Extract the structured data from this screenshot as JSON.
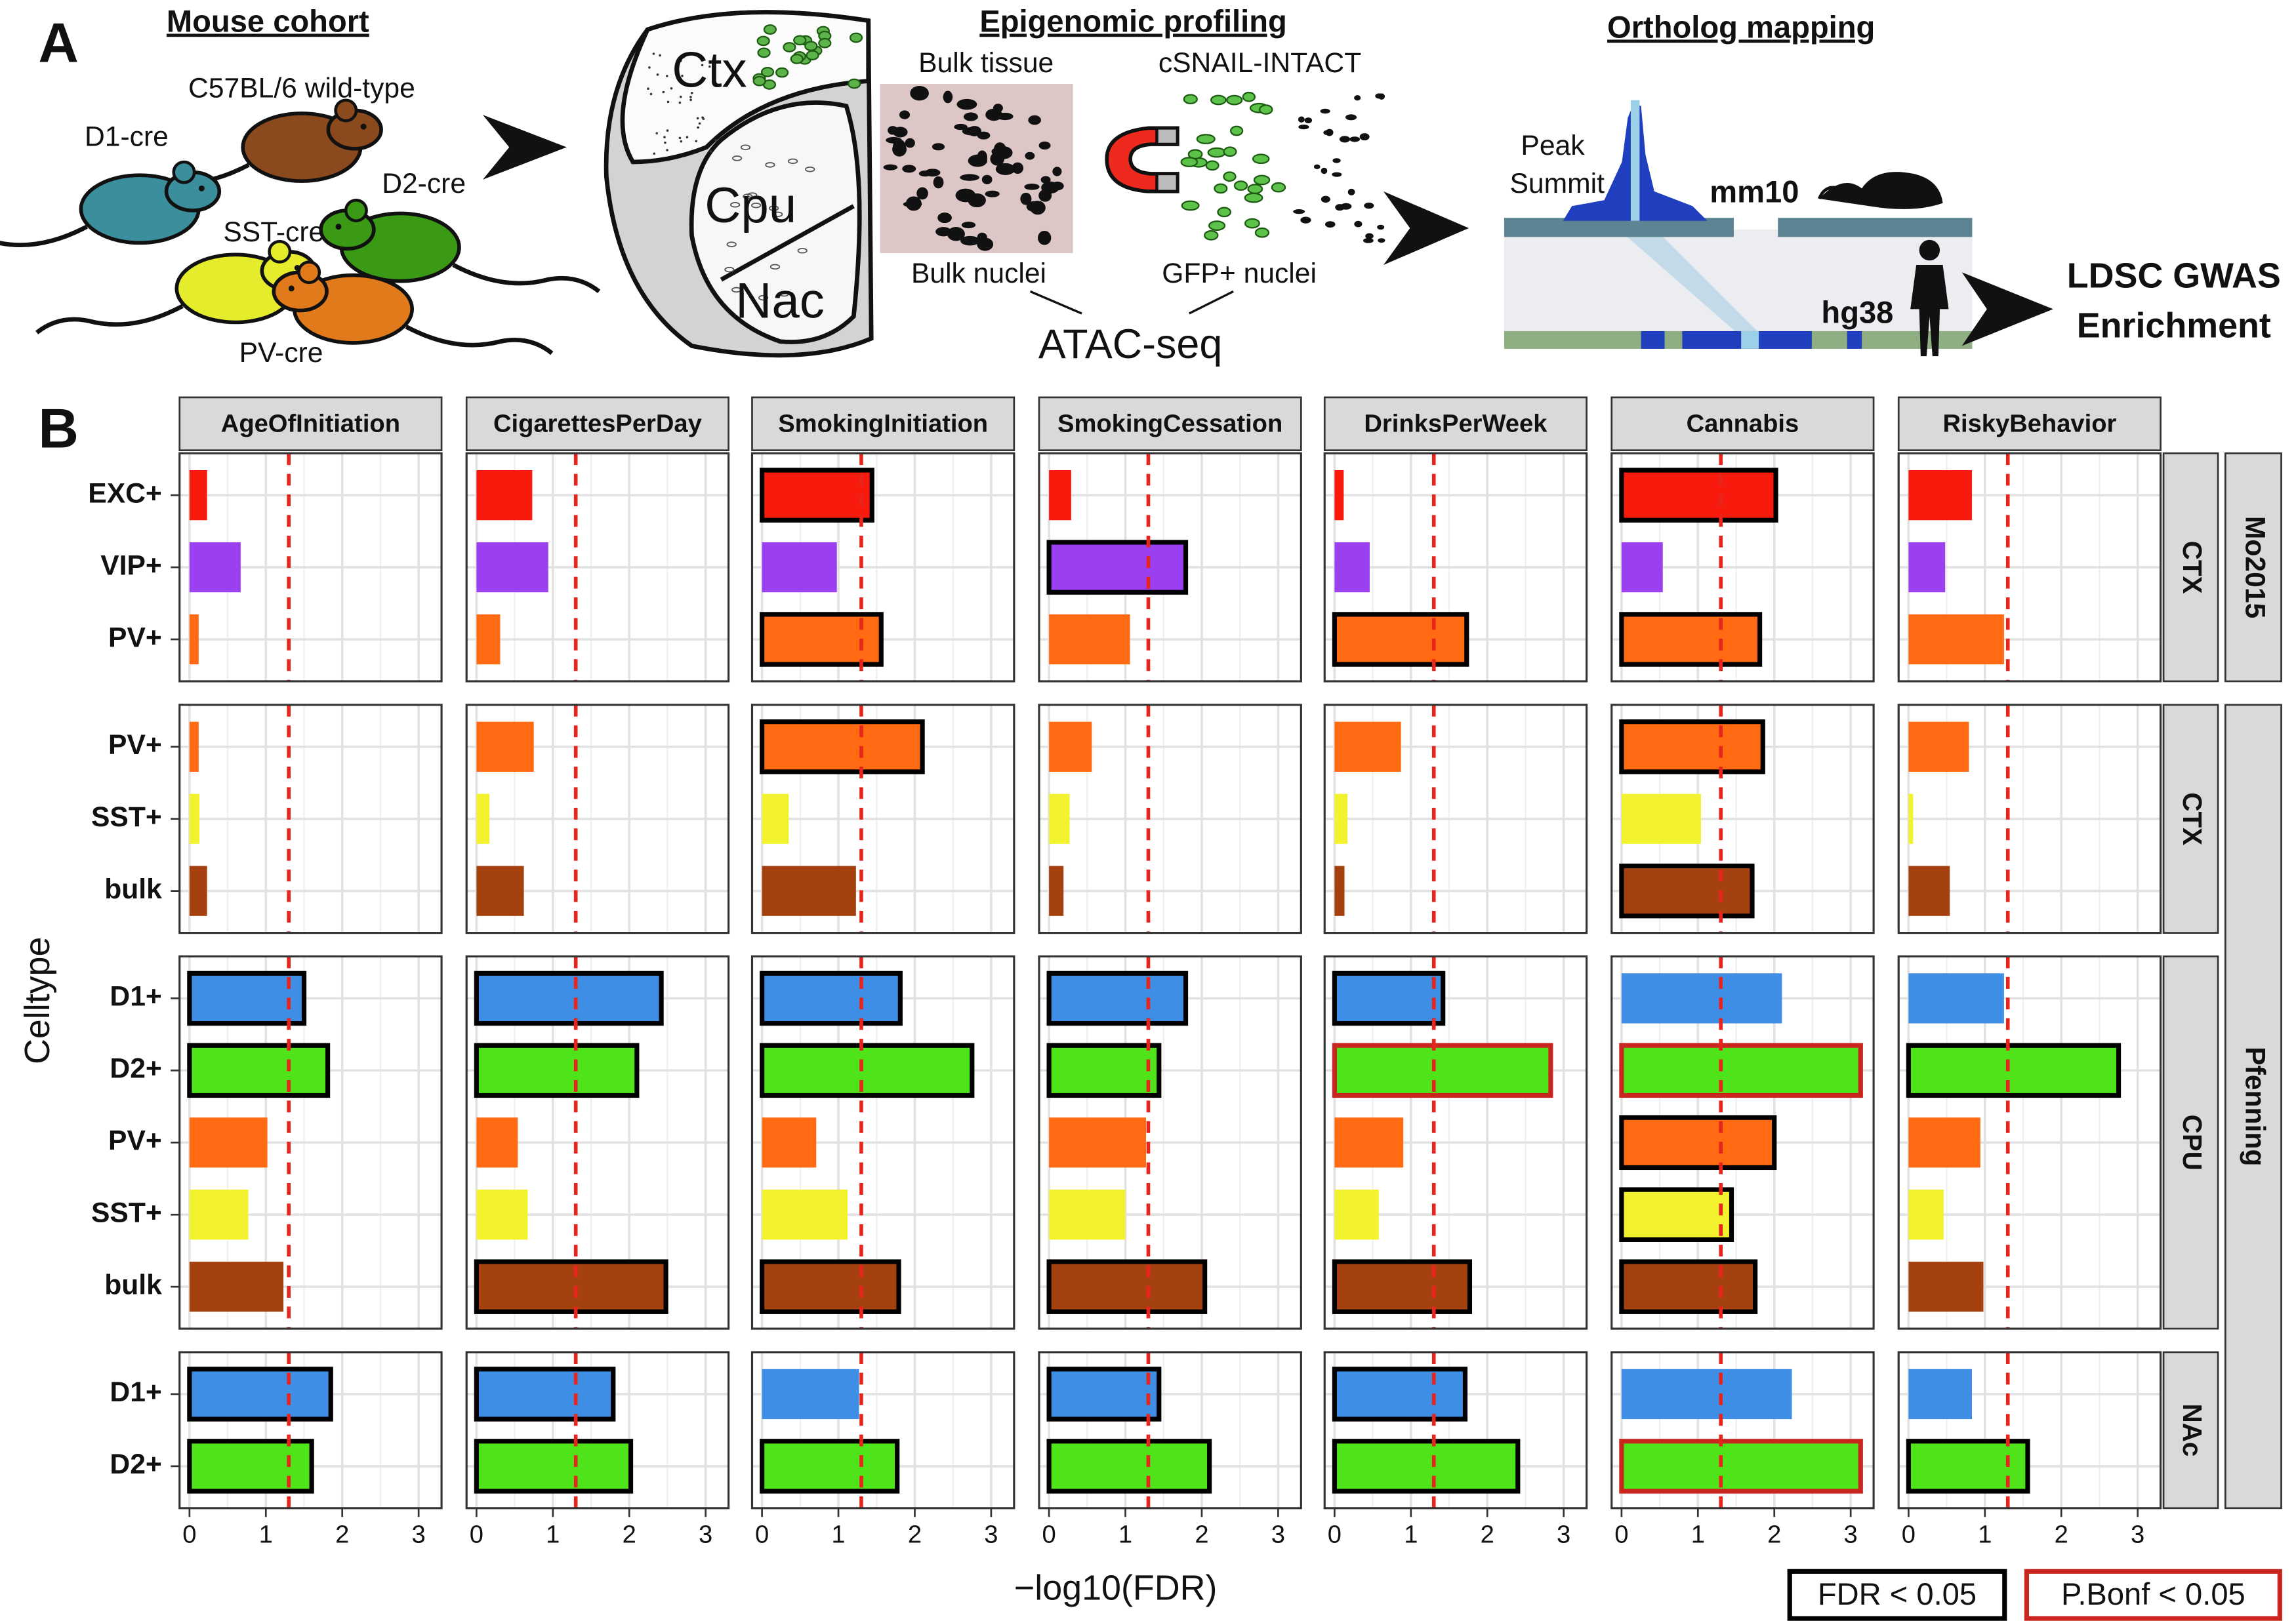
{
  "panel_a": {
    "label": "A",
    "cohort": {
      "title": "Mouse cohort",
      "strains": [
        "C57BL/6 wild-type",
        "D1-cre",
        "D2-cre",
        "SST-cre",
        "PV-cre"
      ]
    },
    "profiling": {
      "title": "Epigenomic profiling",
      "brain_regions": [
        "Ctx",
        "Cpu",
        "Nac"
      ],
      "bulk_tissue": "Bulk tissue",
      "cells": "cSNAIL-INTACT",
      "bulk_nuclei": "Bulk nuclei",
      "gfp_nuclei": "GFP+ nuclei",
      "assay": "ATAC-seq"
    },
    "mapping": {
      "title": "Ortholog mapping",
      "peak": "Peak",
      "summit": "Summit",
      "mouse_genome": "mm10",
      "human_genome": "hg38",
      "result": [
        "LDSC GWAS",
        "Enrichment"
      ]
    }
  },
  "chart_data": {
    "type": "bar",
    "label": "B",
    "traits": [
      "AgeOfInitiation",
      "CigarettesPerDay",
      "SmokingInitiation",
      "SmokingCessation",
      "DrinksPerWeek",
      "Cannabis",
      "RiskyBehavior"
    ],
    "xlabel": "−log10(FDR)",
    "ylabel": "Celltype",
    "xlim": [
      -0.13,
      3.3
    ],
    "xticks": [
      0,
      1,
      2,
      3
    ],
    "xminor": [
      0.5,
      1.5,
      2.5
    ],
    "grid": true,
    "threshold": 1.3,
    "threshold_color": "#e8241c",
    "legend": [
      {
        "label": "FDR < 0.05",
        "color": "#000000"
      },
      {
        "label": "P.Bonf < 0.05",
        "color": "#c8261e"
      }
    ],
    "datasets": [
      {
        "name": "Mo2015",
        "groups": [
          {
            "region": "CTX",
            "categories": [
              "EXC+",
              "VIP+",
              "PV+"
            ],
            "colors": [
              "#f81a0c",
              "#9a40f0",
              "#ff6a12"
            ],
            "values": [
              [
                0.23,
                0.67,
                0.12
              ],
              [
                0.73,
                0.94,
                0.31
              ],
              [
                1.44,
                0.98,
                1.56
              ],
              [
                0.29,
                1.79,
                1.06
              ],
              [
                0.12,
                0.46,
                1.73
              ],
              [
                2.02,
                0.54,
                1.81
              ],
              [
                0.83,
                0.48,
                1.25
              ]
            ],
            "outline": [
              [
                null,
                null,
                null
              ],
              [
                null,
                null,
                null
              ],
              [
                0,
                null,
                0
              ],
              [
                null,
                0,
                null
              ],
              [
                null,
                null,
                0
              ],
              [
                0,
                null,
                0
              ],
              [
                null,
                null,
                null
              ]
            ]
          }
        ]
      },
      {
        "name": "Pfenning",
        "groups": [
          {
            "region": "CTX",
            "categories": [
              "PV+",
              "SST+",
              "bulk"
            ],
            "colors": [
              "#ff6a12",
              "#f2f22e",
              "#a5400f"
            ],
            "values": [
              [
                0.12,
                0.13,
                0.23
              ],
              [
                0.75,
                0.17,
                0.62
              ],
              [
                2.1,
                0.35,
                1.23
              ],
              [
                0.56,
                0.27,
                0.19
              ],
              [
                0.87,
                0.17,
                0.13
              ],
              [
                1.85,
                1.04,
                1.71
              ],
              [
                0.79,
                0.06,
                0.54
              ]
            ],
            "outline": [
              [
                null,
                null,
                null
              ],
              [
                null,
                null,
                null
              ],
              [
                0,
                null,
                null
              ],
              [
                null,
                null,
                null
              ],
              [
                null,
                null,
                null
              ],
              [
                0,
                null,
                0
              ],
              [
                null,
                null,
                null
              ]
            ]
          },
          {
            "region": "CPU",
            "categories": [
              "D1+",
              "D2+",
              "PV+",
              "SST+",
              "bulk"
            ],
            "colors": [
              "#3f8ee6",
              "#4fe41a",
              "#ff6a12",
              "#f2f22e",
              "#a5400f"
            ],
            "values": [
              [
                1.5,
                1.81,
                1.02,
                0.77,
                1.23
              ],
              [
                2.42,
                2.1,
                0.54,
                0.67,
                2.48
              ],
              [
                1.81,
                2.75,
                0.71,
                1.12,
                1.79
              ],
              [
                1.79,
                1.44,
                1.27,
                1.0,
                2.04
              ],
              [
                1.42,
                2.83,
                0.9,
                0.58,
                1.77
              ],
              [
                2.1,
                3.13,
                2.0,
                1.44,
                1.75
              ],
              [
                1.25,
                2.75,
                0.94,
                0.46,
                0.98
              ]
            ],
            "outline": [
              [
                0,
                0,
                null,
                null,
                null
              ],
              [
                0,
                0,
                null,
                null,
                0
              ],
              [
                0,
                0,
                null,
                null,
                0
              ],
              [
                0,
                0,
                null,
                null,
                0
              ],
              [
                0,
                1,
                null,
                null,
                0
              ],
              [
                null,
                1,
                0,
                0,
                0
              ],
              [
                null,
                0,
                null,
                null,
                null
              ]
            ]
          },
          {
            "region": "NAc",
            "categories": [
              "D1+",
              "D2+"
            ],
            "colors": [
              "#3f8ee6",
              "#4fe41a"
            ],
            "values": [
              [
                1.85,
                1.6
              ],
              [
                1.79,
                2.02
              ],
              [
                1.27,
                1.77
              ],
              [
                1.44,
                2.1
              ],
              [
                1.71,
                2.4
              ],
              [
                2.23,
                3.13
              ],
              [
                0.83,
                1.56
              ]
            ],
            "outline": [
              [
                0,
                0
              ],
              [
                0,
                0
              ],
              [
                null,
                0
              ],
              [
                0,
                0
              ],
              [
                0,
                0
              ],
              [
                null,
                1
              ],
              [
                null,
                0
              ]
            ]
          }
        ]
      }
    ]
  }
}
